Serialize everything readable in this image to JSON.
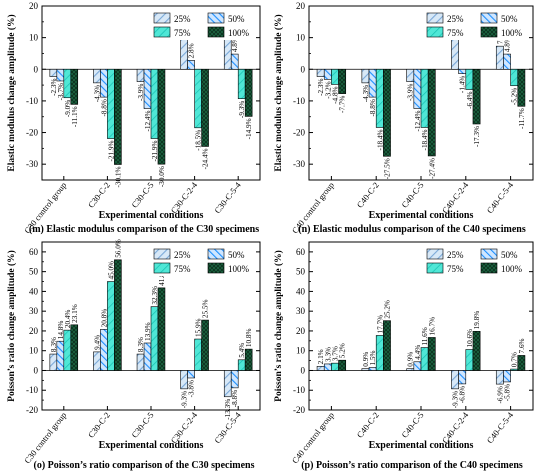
{
  "legend_labels": [
    "25%",
    "50%",
    "75%",
    "100%"
  ],
  "series_colors": [
    "#b7d4f0",
    "#1e90ff",
    "#20e3d2",
    "#1a5c3a"
  ],
  "chart_data": [
    {
      "id": "m",
      "type": "bar",
      "title": "(m) Elastic modulus comparison of the C30 specimens",
      "xlabel": "Experimental conditions",
      "ylabel": "Elastic modulus change amplitude (%)",
      "ylim": [
        -35,
        20
      ],
      "yticks": [
        -30,
        -20,
        -10,
        0,
        10,
        20
      ],
      "legend_position": "top-right",
      "categories": [
        "C30 control group",
        "C30-C-2",
        "C30-C-5",
        "C30-C-2-4",
        "C30-C-5-4"
      ],
      "series": [
        {
          "name": "25%",
          "values": [
            -2.3,
            -4.3,
            -3.9,
            10.9,
            12.1
          ]
        },
        {
          "name": "50%",
          "values": [
            -3.7,
            -8.8,
            -12.4,
            2.8,
            4.8
          ]
        },
        {
          "name": "75%",
          "values": [
            -9.0,
            -21.9,
            -21.9,
            -18.5,
            -9.3
          ]
        },
        {
          "name": "100%",
          "values": [
            -11.1,
            -30.1,
            -30.0,
            -24.4,
            -14.9
          ]
        }
      ],
      "data_labels": [
        [
          "-2.3%",
          "-4.3%",
          "-3.9%",
          "10.9%",
          "12.1%"
        ],
        [
          "-3.7%",
          "-8.8%",
          "-12.4%",
          "2.8%",
          "4.8%"
        ],
        [
          "-9.0%",
          "-21.9%",
          "-21.9%",
          "-18.5%",
          "-9.3%"
        ],
        [
          "-11.1%",
          "-30.1%",
          "-30.0%",
          "-24.4%",
          "-14.9%"
        ]
      ]
    },
    {
      "id": "n",
      "type": "bar",
      "title": "(n) Elastic modulus comparison of the C40 specimens",
      "xlabel": "Experimental conditions",
      "ylabel": "Elastic modulus change amplitude (%)",
      "ylim": [
        -35,
        20
      ],
      "yticks": [
        -30,
        -20,
        -10,
        0,
        10,
        20
      ],
      "legend_position": "top-right",
      "categories": [
        "C40 control group",
        "C40-C-2",
        "C40-C-5",
        "C40-C-2-4",
        "C40-C-5-4"
      ],
      "series": [
        {
          "name": "25%",
          "values": [
            -2.3,
            -4.3,
            -3.9,
            10.9,
            7.3
          ]
        },
        {
          "name": "50%",
          "values": [
            -3.2,
            -8.8,
            -12.4,
            -1.4,
            4.8
          ]
        },
        {
          "name": "75%",
          "values": [
            -4.8,
            -18.4,
            -18.4,
            -6.4,
            -5.2
          ]
        },
        {
          "name": "100%",
          "values": [
            -7.7,
            -27.5,
            -27.4,
            -17.3,
            -11.7
          ]
        }
      ],
      "data_labels": [
        [
          "-2.3%",
          "-4.3%",
          "-3.9%",
          "10.9%",
          "7.3%"
        ],
        [
          "-3.2%",
          "-8.8%",
          "-12.4%",
          "-1.4%",
          "4.8%"
        ],
        [
          "-4.8%",
          "-18.4%",
          "-18.4%",
          "-6.4%",
          "-5.2%"
        ],
        [
          "-7.7%",
          "-27.5%",
          "-27.4%",
          "-17.3%",
          "-11.7%"
        ]
      ]
    },
    {
      "id": "o",
      "type": "bar",
      "title": "(o) Poisson’s ratio comparison of the C30 specimens",
      "xlabel": "Experimental conditions",
      "ylabel": "Poisson’s ratio change amplitude (%)",
      "ylim": [
        -20,
        65
      ],
      "yticks": [
        -20,
        -10,
        0,
        10,
        20,
        30,
        40,
        50,
        60
      ],
      "legend_position": "top-right",
      "categories": [
        "C30 control group",
        "C30-C-2",
        "C30-C-5",
        "C30-C-2-4",
        "C30-C-5-4"
      ],
      "series": [
        {
          "name": "25%",
          "values": [
            8.3,
            9.4,
            8.3,
            -9.3,
            -13.3
          ]
        },
        {
          "name": "50%",
          "values": [
            14.8,
            20.8,
            13.9,
            -3.8,
            -8.8
          ]
        },
        {
          "name": "75%",
          "values": [
            20.4,
            45.0,
            32.3,
            15.9,
            5.4
          ]
        },
        {
          "name": "100%",
          "values": [
            23.1,
            56.0,
            41.8,
            25.5,
            10.8
          ]
        }
      ],
      "data_labels": [
        [
          "8.3%",
          "9.4%",
          "8.3%",
          "-9.3%",
          "-13.3%"
        ],
        [
          "14.8%",
          "20.8%",
          "13.9%",
          "-3.8%",
          "-8.8%"
        ],
        [
          "20.4%",
          "45.0%",
          "32.3%",
          "15.9%",
          "5.4%"
        ],
        [
          "23.1%",
          "56.0%",
          "41.8%",
          "25.5%",
          "10.8%"
        ]
      ]
    },
    {
      "id": "p",
      "type": "bar",
      "title": "(p) Poisson’s ratio comparison of the C40 specimens",
      "xlabel": "Experimental conditions",
      "ylabel": "Poisson’s ratio change amplitude (%)",
      "ylim": [
        -20,
        65
      ],
      "yticks": [
        -20,
        -10,
        0,
        10,
        20,
        30,
        40,
        50,
        60
      ],
      "legend_position": "top-right",
      "categories": [
        "C40 control group",
        "C40-C-2",
        "C40-C-5",
        "C40-C-2-4",
        "C40-C-5-4"
      ],
      "series": [
        {
          "name": "25%",
          "values": [
            2.1,
            0.9,
            0.9,
            -9.3,
            -6.9
          ]
        },
        {
          "name": "50%",
          "values": [
            3.3,
            1.5,
            4.4,
            -6.8,
            -5.8
          ]
        },
        {
          "name": "75%",
          "values": [
            3.7,
            17.7,
            11.6,
            10.6,
            0.7
          ]
        },
        {
          "name": "100%",
          "values": [
            5.2,
            25.2,
            16.7,
            19.8,
            7.6
          ]
        }
      ],
      "data_labels": [
        [
          "2.1%",
          "0.9%",
          "0.9%",
          "-9.3%",
          "-6.9%"
        ],
        [
          "3.3%",
          "1.5%",
          "4.4%",
          "-6.8%",
          "-5.8%"
        ],
        [
          "3.7%",
          "17.7%",
          "11.6%",
          "10.6%",
          "0.7%"
        ],
        [
          "5.2%",
          "25.2%",
          "16.7%",
          "19.8%",
          "7.6%"
        ]
      ]
    }
  ]
}
